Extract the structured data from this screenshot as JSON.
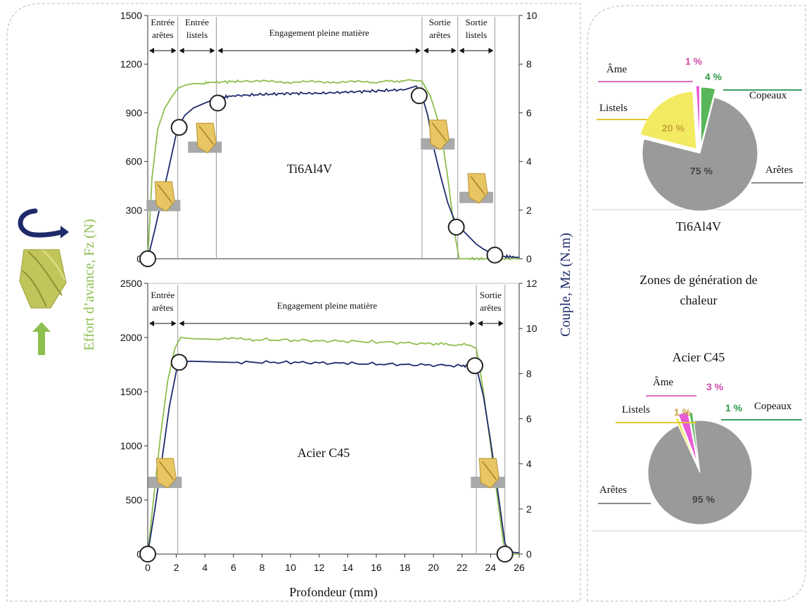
{
  "colors": {
    "force": "#8dbf4e",
    "torque": "#1f2a6b",
    "arretes": "#9a9a9a",
    "listels": "#f2ea60",
    "ame": "#e85ad8",
    "copeaux": "#58b75a"
  },
  "icons": [
    "rotation-arrow-icon",
    "drill-bit-icon",
    "feed-arrow-icon",
    "drill-phase-icon"
  ],
  "axis_titles": {
    "left": "Effort d’avance, Fz (N)",
    "right": "Couple, Mz (N.m)",
    "bottom": "Profondeur (mm)"
  },
  "heat_zones_title_line1": "Zones de génération de",
  "heat_zones_title_line2": "chaleur",
  "chart_data": [
    {
      "type": "line",
      "label": "Ti6Al4V",
      "xlabel": "Profondeur (mm)",
      "ylabel": "Effort d’avance, Fz (N)",
      "y2label": "Couple, Mz (N.m)",
      "xlim": [
        0,
        26
      ],
      "ylim": [
        0,
        1500
      ],
      "y2lim": [
        0,
        10
      ],
      "x_ticks": [
        0,
        2,
        4,
        6,
        8,
        10,
        12,
        14,
        16,
        18,
        20,
        22,
        24,
        26
      ],
      "y_ticks": [
        0,
        300,
        600,
        900,
        1200,
        1500
      ],
      "y2_ticks": [
        0,
        2,
        4,
        6,
        8,
        10
      ],
      "grid": false,
      "phase_boundaries": [
        0,
        2.1,
        4.8,
        19.2,
        21.7,
        24.3
      ],
      "phases": [
        {
          "label": [
            "Entrée",
            "arêtes"
          ],
          "from": 0,
          "to": 2.1
        },
        {
          "label": [
            "Entrée",
            "listels"
          ],
          "from": 2.1,
          "to": 4.8
        },
        {
          "label": [
            "Engagement pleine matière"
          ],
          "from": 4.8,
          "to": 19.2
        },
        {
          "label": [
            "Sortie",
            "arêtes"
          ],
          "from": 19.2,
          "to": 21.7
        },
        {
          "label": [
            "Sortie",
            "listels"
          ],
          "from": 21.7,
          "to": 24.3
        }
      ],
      "series": [
        {
          "role": "force",
          "axis": "left",
          "x": [
            0,
            0.3,
            0.7,
            1.2,
            1.7,
            2.1,
            2.6,
            3.2,
            4.0,
            5.0,
            7.0,
            10.0,
            13.0,
            16.0,
            18.5,
            19.2,
            19.8,
            20.5,
            21.0,
            21.5,
            21.8,
            22.2,
            24.0,
            26.0
          ],
          "y": [
            0,
            500,
            800,
            930,
            1000,
            1050,
            1070,
            1080,
            1085,
            1090,
            1095,
            1090,
            1090,
            1090,
            1100,
            1095,
            1000,
            800,
            500,
            150,
            0,
            0,
            0,
            0
          ]
        },
        {
          "role": "torque",
          "axis": "right",
          "x": [
            0,
            0.5,
            1.0,
            1.5,
            2.1,
            2.6,
            3.2,
            4.0,
            4.8,
            6.0,
            8.0,
            10.0,
            12.0,
            14.0,
            16.0,
            18.0,
            18.8,
            19.2,
            19.6,
            20.0,
            20.5,
            21.0,
            21.6,
            22.0,
            22.5,
            23.0,
            23.5,
            24.3,
            25.0,
            26.0
          ],
          "y": [
            0,
            1.2,
            2.5,
            3.8,
            5.4,
            5.9,
            6.2,
            6.4,
            6.6,
            6.7,
            6.75,
            6.8,
            6.8,
            6.85,
            6.9,
            6.95,
            7.1,
            6.7,
            5.9,
            4.6,
            3.4,
            2.3,
            1.4,
            1.2,
            0.9,
            0.6,
            0.4,
            0.15,
            0.1,
            0.05
          ]
        }
      ],
      "markers": [
        {
          "series": "torque",
          "x": 0,
          "y": 0
        },
        {
          "series": "torque",
          "x": 2.2,
          "y": 5.4
        },
        {
          "series": "torque",
          "x": 4.9,
          "y": 6.4
        },
        {
          "series": "torque",
          "x": 19.0,
          "y": 6.7
        },
        {
          "series": "torque",
          "x": 21.6,
          "y": 1.3
        },
        {
          "series": "torque",
          "x": 24.3,
          "y": 0.15
        }
      ]
    },
    {
      "type": "line",
      "label": "Acier C45",
      "xlabel": "Profondeur (mm)",
      "ylabel": "Effort d’avance, Fz (N)",
      "y2label": "Couple, Mz (N.m)",
      "xlim": [
        0,
        26
      ],
      "ylim": [
        0,
        2500
      ],
      "y2lim": [
        0,
        12
      ],
      "x_ticks": [
        0,
        2,
        4,
        6,
        8,
        10,
        12,
        14,
        16,
        18,
        20,
        22,
        24,
        26
      ],
      "y_ticks": [
        0,
        500,
        1000,
        1500,
        2000,
        2500
      ],
      "y2_ticks": [
        0,
        2,
        4,
        6,
        8,
        10,
        12
      ],
      "grid": false,
      "phase_boundaries": [
        0,
        2.1,
        23.0,
        25.0
      ],
      "phases": [
        {
          "label": [
            "Entrée",
            "arêtes"
          ],
          "from": 0,
          "to": 2.1
        },
        {
          "label": [
            "Engagement pleine matière"
          ],
          "from": 2.1,
          "to": 23.0
        },
        {
          "label": [
            "Sortie",
            "arêtes"
          ],
          "from": 23.0,
          "to": 25.0
        }
      ],
      "series": [
        {
          "role": "force",
          "axis": "left",
          "x": [
            0,
            0.4,
            0.9,
            1.4,
            1.9,
            2.3,
            3.0,
            5.0,
            8.0,
            12.0,
            16.0,
            20.0,
            22.5,
            23.0,
            23.5,
            24.0,
            24.5,
            24.9,
            25.2,
            26.0
          ],
          "y": [
            0,
            500,
            1100,
            1600,
            1900,
            2000,
            1990,
            1990,
            1980,
            1970,
            1960,
            1940,
            1930,
            1900,
            1500,
            1000,
            500,
            100,
            0,
            0
          ]
        },
        {
          "role": "torque",
          "axis": "right",
          "x": [
            0,
            0.5,
            1.0,
            1.5,
            2.0,
            2.3,
            3.0,
            6.0,
            10.0,
            14.0,
            18.0,
            22.0,
            23.0,
            23.5,
            24.0,
            24.5,
            25.0,
            25.3,
            26.0
          ],
          "y": [
            0,
            2.0,
            4.2,
            6.5,
            8.1,
            8.5,
            8.55,
            8.5,
            8.5,
            8.45,
            8.4,
            8.35,
            8.3,
            7.0,
            5.0,
            2.8,
            0.5,
            0.1,
            0.05
          ]
        }
      ],
      "markers": [
        {
          "series": "torque",
          "x": 0,
          "y": 0
        },
        {
          "series": "torque",
          "x": 2.2,
          "y": 8.5
        },
        {
          "series": "torque",
          "x": 22.9,
          "y": 8.35
        },
        {
          "series": "torque",
          "x": 25.0,
          "y": 0
        }
      ]
    },
    {
      "type": "pie",
      "label": "Ti6Al4V",
      "slices": [
        {
          "name": "Arêtes",
          "value": 75,
          "label": "75 %",
          "role": "arretes",
          "explode": 0
        },
        {
          "name": "Listels",
          "value": 20,
          "label": "20 %",
          "role": "listels",
          "explode": 8
        },
        {
          "name": "Âme",
          "value": 1,
          "label": "1 %",
          "role": "ame",
          "explode": 14
        },
        {
          "name": "Copeaux",
          "value": 4,
          "label": "4 %",
          "role": "copeaux",
          "explode": 12
        }
      ]
    },
    {
      "type": "pie",
      "label": "Acier C45",
      "slices": [
        {
          "name": "Arêtes",
          "value": 95,
          "label": "95 %",
          "role": "arretes",
          "explode": 0
        },
        {
          "name": "Listels",
          "value": 1,
          "label": "1 %",
          "role": "listels",
          "explode": 10
        },
        {
          "name": "Âme",
          "value": 3,
          "label": "3 %",
          "role": "ame",
          "explode": 14
        },
        {
          "name": "Copeaux",
          "value": 1,
          "label": "1 %",
          "role": "copeaux",
          "explode": 12
        }
      ]
    }
  ]
}
